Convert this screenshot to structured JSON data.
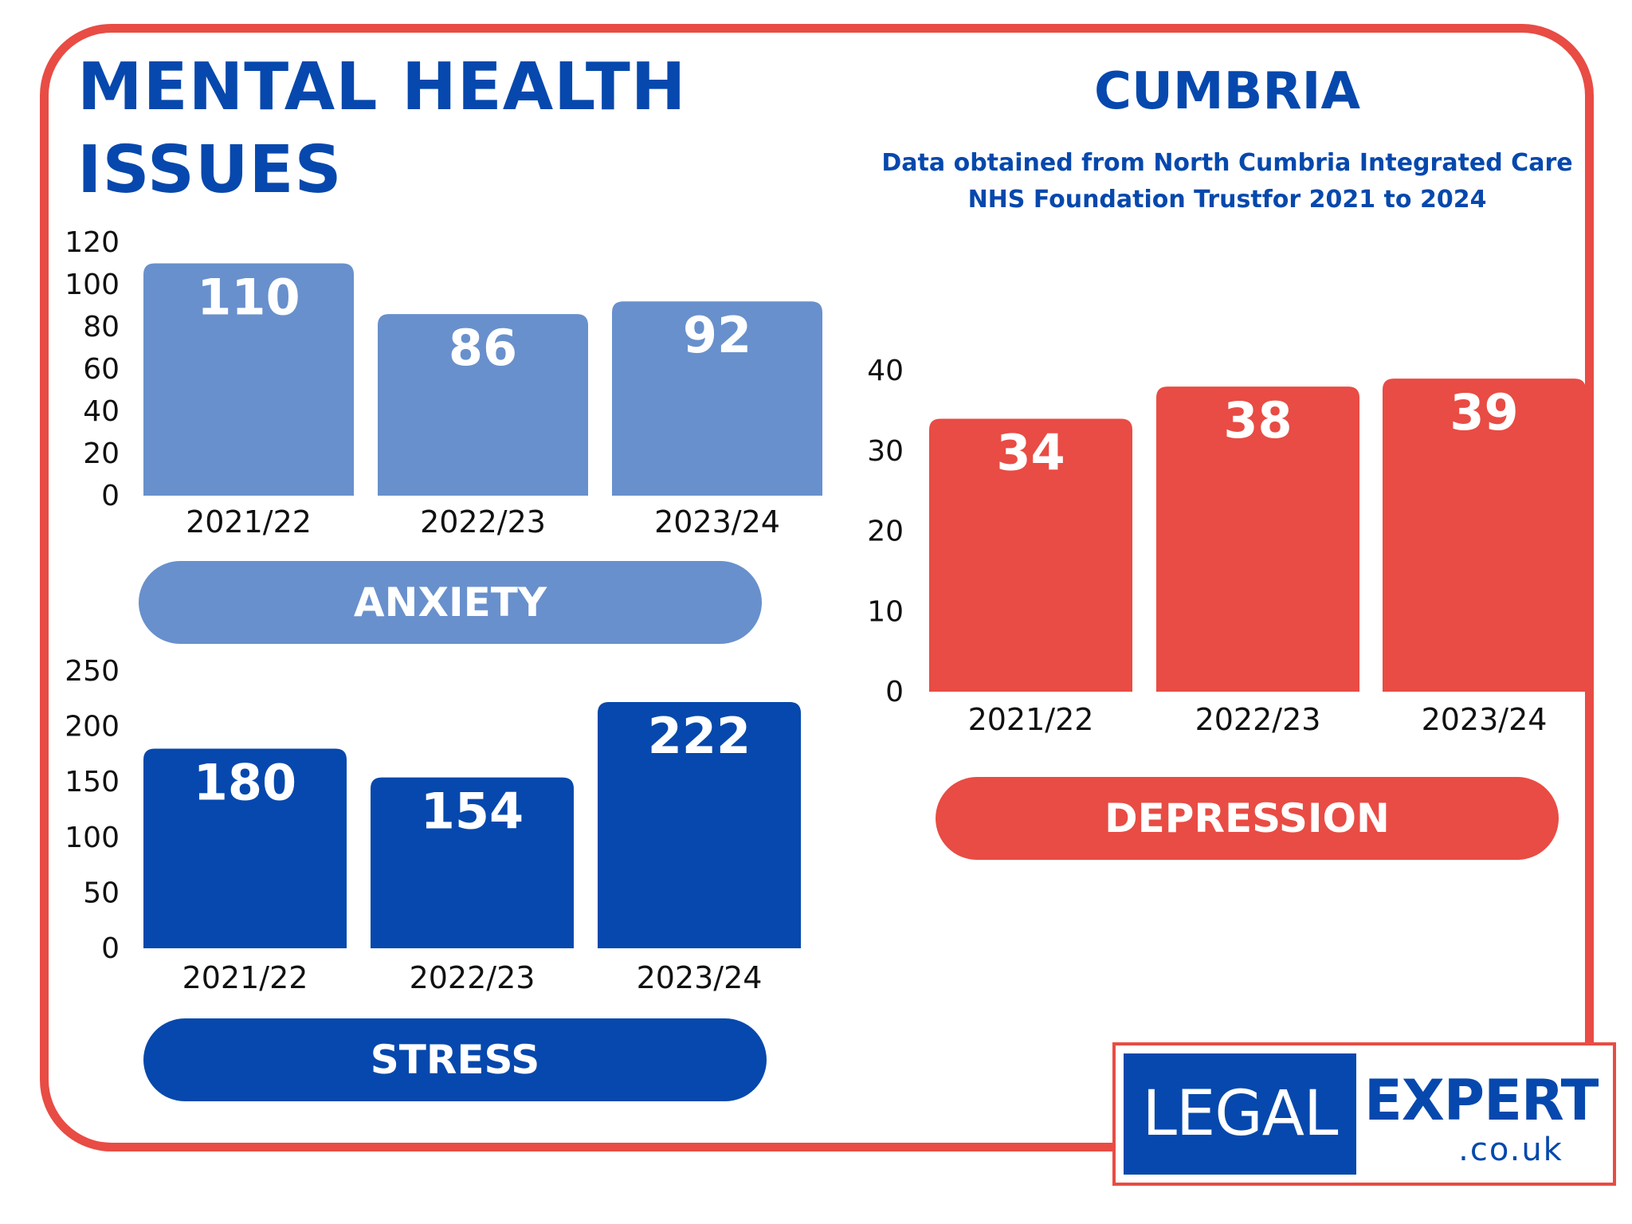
{
  "header": {
    "title_line1": "MENTAL HEALTH",
    "title_line2": "ISSUES",
    "region": "CUMBRIA",
    "source_line1": "Data obtained from North Cumbria Integrated Care",
    "source_line2": "NHS Foundation Trustfor 2021 to 2024"
  },
  "colors": {
    "anxiety": "#6890cc",
    "stress": "#0648ad",
    "depression": "#e84c44",
    "text_blue": "#0648ad",
    "frame": "#e84c44"
  },
  "chart_data": [
    {
      "type": "bar",
      "categories": [
        "2021/22",
        "2022/23",
        "2023/24"
      ],
      "values": [
        110,
        86,
        92
      ],
      "ylim": [
        0,
        120
      ],
      "yticks": [
        0,
        20,
        40,
        60,
        80,
        100,
        120
      ],
      "label": "ANXIETY",
      "color": "#6890cc"
    },
    {
      "type": "bar",
      "categories": [
        "2021/22",
        "2022/23",
        "2023/24"
      ],
      "values": [
        180,
        154,
        222
      ],
      "ylim": [
        0,
        250
      ],
      "yticks": [
        0,
        50,
        100,
        150,
        200,
        250
      ],
      "label": "STRESS",
      "color": "#0648ad"
    },
    {
      "type": "bar",
      "categories": [
        "2021/22",
        "2022/23",
        "2023/24"
      ],
      "values": [
        34,
        38,
        39
      ],
      "ylim": [
        0,
        40
      ],
      "yticks": [
        0,
        10,
        20,
        30,
        40
      ],
      "label": "DEPRESSION",
      "color": "#e84c44"
    }
  ],
  "logo": {
    "word1": "LEGAL",
    "word2": "EXPERT",
    "domain": ".co.uk"
  }
}
